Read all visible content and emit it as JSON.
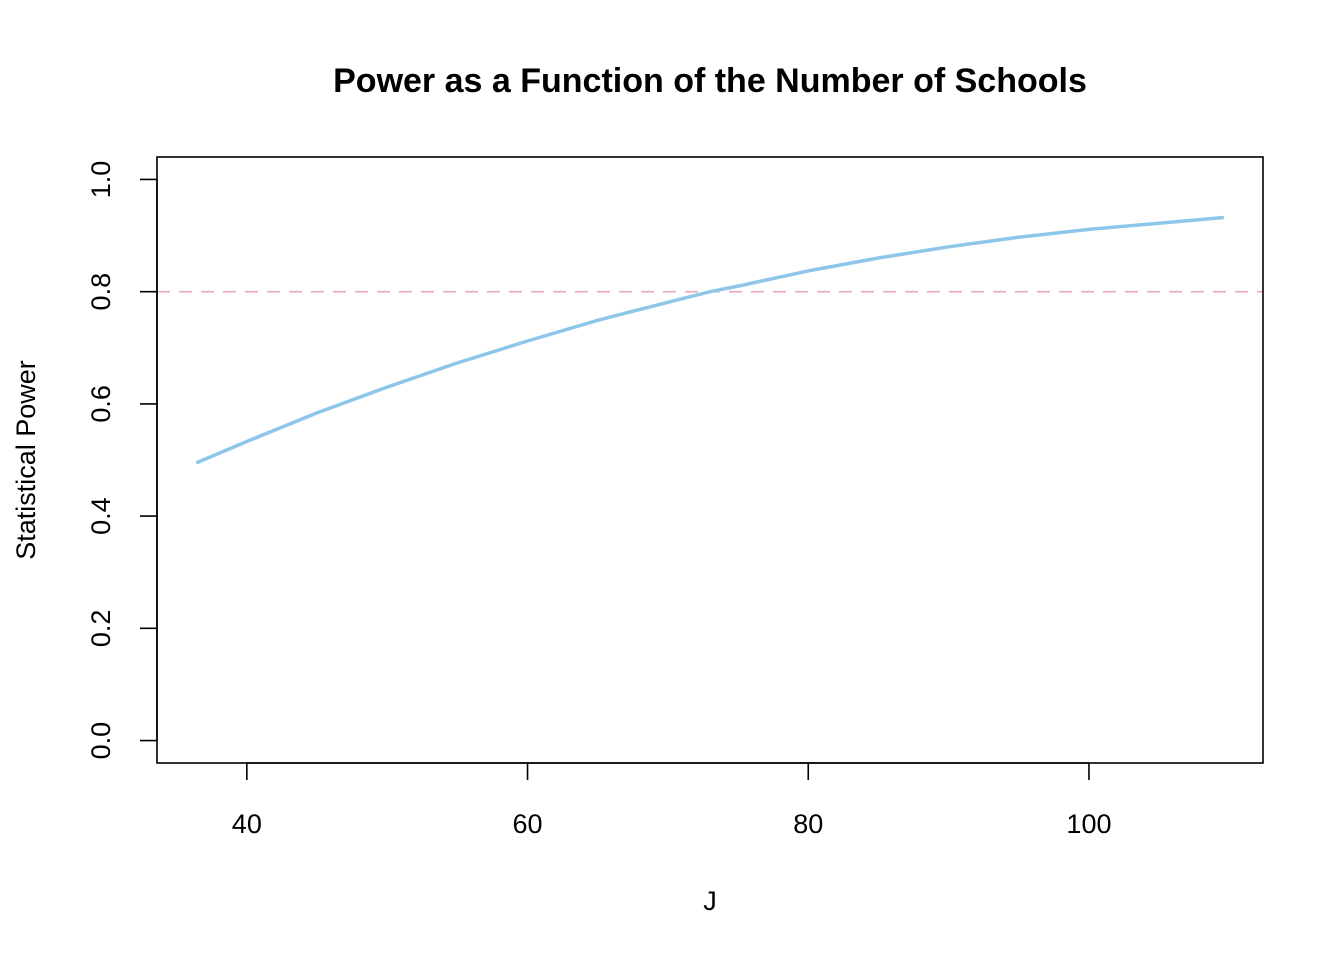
{
  "chart_data": {
    "type": "line",
    "title": "Power as a Function of the Number of Schools",
    "xlabel": "J",
    "ylabel": "Statistical Power",
    "xlim": [
      33.6,
      112.4
    ],
    "ylim": [
      -0.04,
      1.04
    ],
    "x_ticks": [
      40,
      60,
      80,
      100
    ],
    "x_tick_labels": [
      "40",
      "60",
      "80",
      "100"
    ],
    "y_ticks": [
      0.0,
      0.2,
      0.4,
      0.6,
      0.8,
      1.0
    ],
    "y_tick_labels": [
      "0.0",
      "0.2",
      "0.4",
      "0.6",
      "0.8",
      "1.0"
    ],
    "grid": false,
    "series": [
      {
        "color": "#8EC6EA",
        "x": [
          36.5,
          40,
          45,
          50,
          55,
          60,
          65,
          70,
          73,
          75,
          80,
          85,
          90,
          95,
          100,
          105,
          109.5
        ],
        "y": [
          0.496,
          0.533,
          0.584,
          0.63,
          0.673,
          0.712,
          0.749,
          0.781,
          0.8,
          0.81,
          0.837,
          0.86,
          0.88,
          0.897,
          0.911,
          0.922,
          0.932
        ]
      }
    ],
    "reference_lines": [
      {
        "orientation": "horizontal",
        "y": 0.8,
        "style": "dashed",
        "color": "#E8A8B8"
      }
    ]
  }
}
